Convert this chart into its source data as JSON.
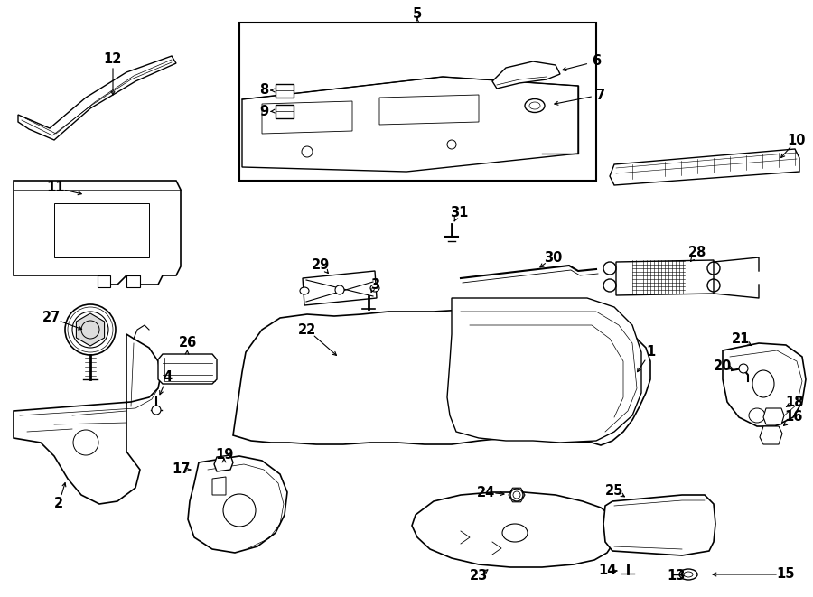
{
  "bg": "#ffffff",
  "lc": "#000000",
  "fw": 9.0,
  "fh": 6.61,
  "dpi": 100
}
